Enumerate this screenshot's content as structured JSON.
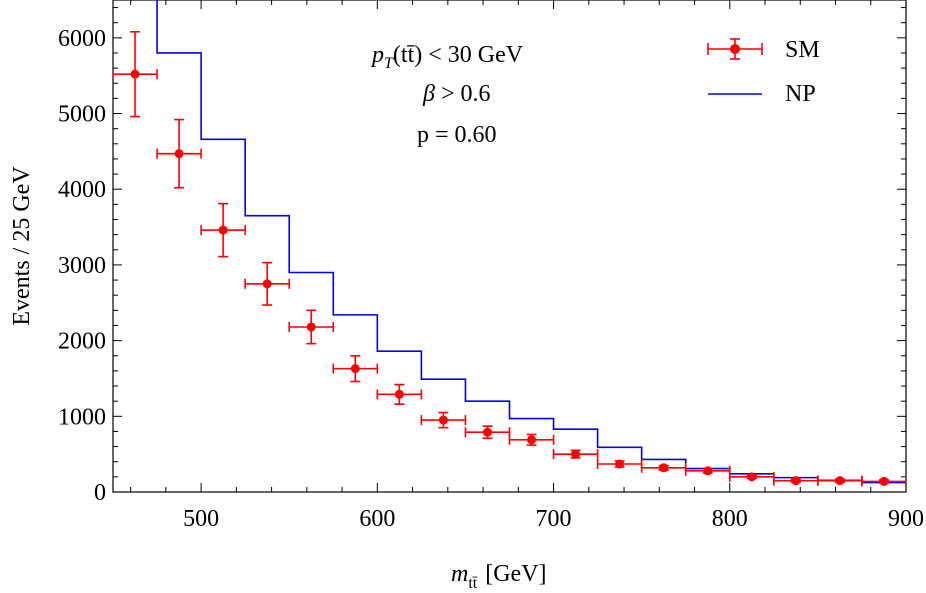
{
  "chart_data": {
    "type": "line",
    "xlabel": {
      "main": "m",
      "sub": "tt̄",
      "unit": "[GeV]"
    },
    "ylabel": "Events / 25 GeV",
    "xlim": [
      450,
      900
    ],
    "ylim": [
      0,
      6500
    ],
    "x_ticks": [
      500,
      600,
      700,
      800,
      900
    ],
    "y_ticks": [
      0,
      1000,
      2000,
      3000,
      4000,
      5000,
      6000
    ],
    "annotations": [
      {
        "id": "cut_pt",
        "text": "p_T(tt̄) < 30 GeV",
        "parts": {
          "p": "p",
          "sub": "T",
          "open": "(",
          "tt": "tt̄",
          "rest": ") < 30 GeV"
        }
      },
      {
        "id": "cut_beta",
        "text": "β > 0.6",
        "parts": {
          "sym": "β",
          "rest": " > 0.6"
        }
      },
      {
        "id": "pvalue",
        "text": "p = 0.60"
      }
    ],
    "legend": {
      "position": "top-right",
      "entries": [
        {
          "label": "SM",
          "color": "#ff0000",
          "style": "point-errorbar"
        },
        {
          "label": "NP",
          "color": "#0000ff",
          "style": "step-line"
        }
      ]
    },
    "series": [
      {
        "name": "SM",
        "style": "points-with-errorbars",
        "color": "#ff0000",
        "bin_width": 25,
        "x": [
          462.5,
          487.5,
          512.5,
          537.5,
          562.5,
          587.5,
          612.5,
          637.5,
          662.5,
          687.5,
          712.5,
          737.5,
          762.5,
          787.5,
          812.5,
          837.5,
          862.5,
          887.5
        ],
        "y": [
          5520,
          4470,
          3460,
          2750,
          2180,
          1630,
          1290,
          950,
          790,
          690,
          500,
          370,
          320,
          280,
          200,
          150,
          150,
          140
        ],
        "yerr": [
          560,
          450,
          350,
          280,
          220,
          170,
          130,
          100,
          80,
          70,
          50,
          40,
          30,
          30,
          20,
          20,
          20,
          20
        ]
      },
      {
        "name": "NP",
        "style": "step",
        "color": "#0000ff",
        "bin_edges": [
          450,
          475,
          500,
          525,
          550,
          575,
          600,
          625,
          650,
          675,
          700,
          725,
          750,
          775,
          800,
          825,
          850,
          875,
          900
        ],
        "values": [
          6800,
          5800,
          4660,
          3650,
          2900,
          2340,
          1860,
          1490,
          1200,
          970,
          830,
          590,
          430,
          310,
          240,
          190,
          155,
          125,
          105
        ]
      }
    ]
  }
}
